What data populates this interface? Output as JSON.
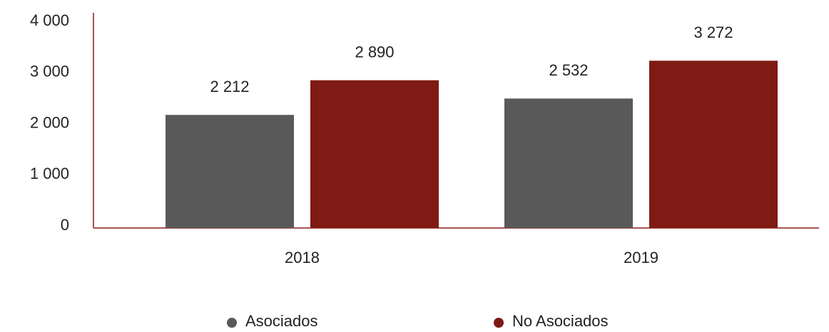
{
  "chart_data": {
    "type": "bar",
    "categories": [
      "2018",
      "2019"
    ],
    "series": [
      {
        "name": "Asociados",
        "color": "#595959",
        "values": [
          2212,
          2532
        ],
        "value_labels": [
          "2 212",
          "2 532"
        ]
      },
      {
        "name": "No Asociados",
        "color": "#7f1a14",
        "values": [
          2890,
          3272
        ],
        "value_labels": [
          "2 890",
          "3 272"
        ]
      }
    ],
    "ylim": [
      0,
      4000
    ],
    "yticks": [
      {
        "value": 0,
        "label": "0"
      },
      {
        "value": 1000,
        "label": "1 000"
      },
      {
        "value": 2000,
        "label": "2 000"
      },
      {
        "value": 3000,
        "label": "3 000"
      },
      {
        "value": 4000,
        "label": "4 000"
      }
    ],
    "legend": "bottom"
  }
}
